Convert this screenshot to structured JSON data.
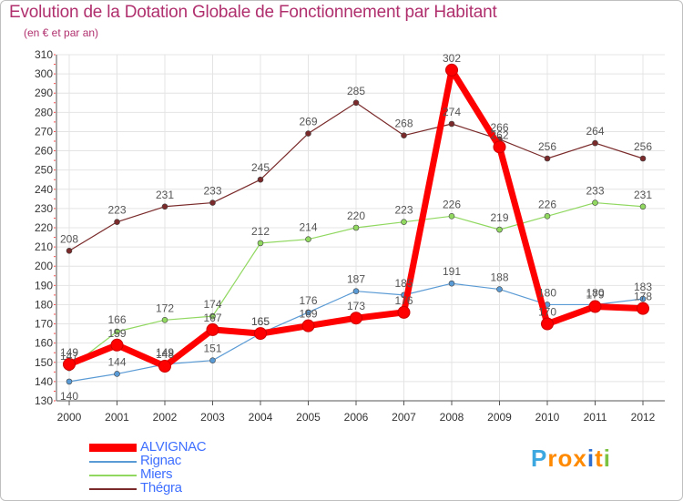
{
  "header": {
    "title": "Evolution de la Dotation Globale de Fonctionnement par Habitant",
    "subtitle": "(en € et par an)"
  },
  "logo": {
    "text": "Proxiti",
    "letters": [
      "P",
      "r",
      "o",
      "x",
      "i",
      "t",
      "i"
    ],
    "colors": [
      "#3da7e0",
      "#ff8a00",
      "#ff8a00",
      "#ff8a00",
      "#2f6fd0",
      "#ff8a00",
      "#7cc242"
    ]
  },
  "chart_data": {
    "type": "line",
    "title": "Evolution de la Dotation Globale de Fonctionnement par Habitant",
    "xlabel": "",
    "ylabel": "(en € et par an)",
    "ylim": [
      130,
      310
    ],
    "yticks": [
      130,
      140,
      150,
      160,
      170,
      180,
      190,
      200,
      210,
      220,
      230,
      240,
      250,
      260,
      270,
      280,
      290,
      300,
      310
    ],
    "categories": [
      "2000",
      "2001",
      "2002",
      "2003",
      "2004",
      "2005",
      "2006",
      "2007",
      "2008",
      "2009",
      "2010",
      "2011",
      "2012"
    ],
    "series": [
      {
        "name": "ALVIGNAC",
        "color": "#ff0000",
        "values": [
          149,
          159,
          148,
          167,
          165,
          169,
          173,
          176,
          302,
          262,
          170,
          179,
          178
        ]
      },
      {
        "name": "Rignac",
        "color": "#5b9bd5",
        "values": [
          140,
          144,
          149,
          151,
          165,
          176,
          187,
          185,
          191,
          188,
          180,
          180,
          183
        ]
      },
      {
        "name": "Miers",
        "color": "#90d860",
        "values": [
          147,
          166,
          172,
          174,
          212,
          214,
          220,
          223,
          226,
          219,
          226,
          233,
          231
        ]
      },
      {
        "name": "Thégra",
        "color": "#7a2a2a",
        "values": [
          208,
          223,
          231,
          233,
          245,
          269,
          285,
          268,
          274,
          266,
          256,
          264,
          256
        ]
      }
    ],
    "grid": true,
    "legend": "bottom-left"
  }
}
